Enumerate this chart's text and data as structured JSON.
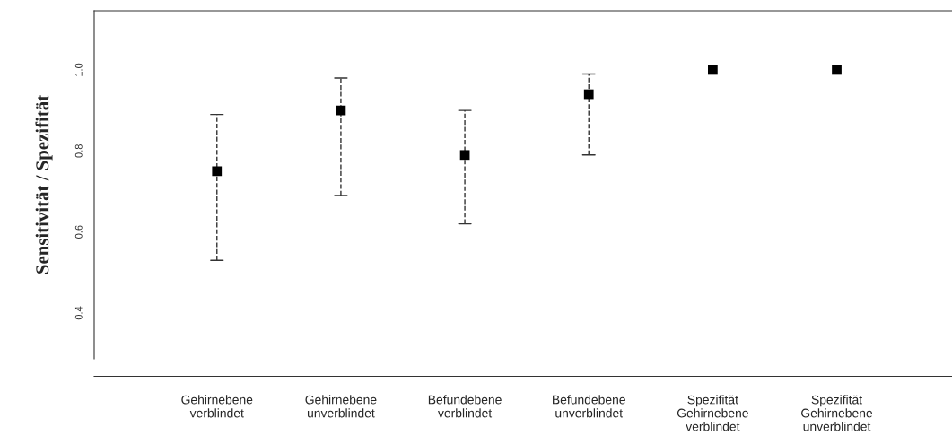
{
  "chart_data": {
    "type": "scatter",
    "ylabel": "Sensitivität / Spezifität",
    "categories": [
      "Gehirnebene\nverblindet",
      "Gehirnebene\nunverblindet",
      "Befundebene\nverblindet",
      "Befundebene\nunverblindet",
      "Spezifität\nGehirnebene\nverblindet",
      "Spezifität\nGehirnebene\nunverblindet"
    ],
    "values": [
      0.75,
      0.9,
      0.79,
      0.94,
      1.0,
      1.0
    ],
    "errors": [
      [
        0.53,
        0.89
      ],
      [
        0.69,
        0.98
      ],
      [
        0.62,
        0.9
      ],
      [
        0.79,
        0.99
      ],
      null,
      null
    ],
    "color": "#000000",
    "marker": "square",
    "line_style": "dashed",
    "ylim": [
      0.287,
      1.146
    ],
    "yticks": [
      {
        "value": 0.4,
        "label": "0.4"
      },
      {
        "value": 0.6,
        "label": "0.6"
      },
      {
        "value": 0.8,
        "label": "0.8"
      },
      {
        "value": 1.0,
        "label": "1.0"
      }
    ],
    "grid": false
  }
}
